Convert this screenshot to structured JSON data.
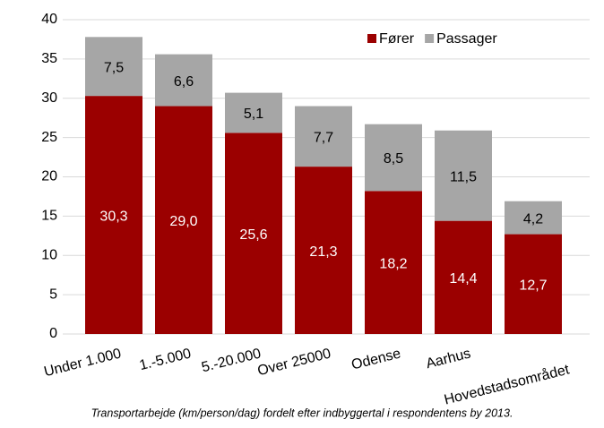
{
  "chart_data": {
    "type": "stacked_bar",
    "caption": "Transportarbejde (km/person/dag) fordelt efter indbyggertal i respondentens by 2013.",
    "categories": [
      "Under 1.000",
      "1.-5.000",
      "5.-20.000",
      "Over 25000",
      "Odense",
      "Aarhus",
      "Hovedstadsområdet"
    ],
    "series": [
      {
        "name": "Fører",
        "color": "#9b0000",
        "values": [
          30.3,
          29.0,
          25.6,
          21.3,
          18.2,
          14.4,
          12.7
        ],
        "value_labels": [
          "30,3",
          "29,0",
          "25,6",
          "21,3",
          "18,2",
          "14,4",
          "12,7"
        ]
      },
      {
        "name": "Passager",
        "color": "#a6a6a6",
        "values": [
          7.5,
          6.6,
          5.1,
          7.7,
          8.5,
          11.5,
          4.2
        ],
        "value_labels": [
          "7,5",
          "6,6",
          "5,1",
          "7,7",
          "8,5",
          "11,5",
          "4,2"
        ]
      }
    ],
    "ylim": [
      0,
      40
    ],
    "yticks": [
      0,
      5,
      10,
      15,
      20,
      25,
      30,
      35,
      40
    ],
    "grid": true,
    "legend": "top-right"
  }
}
